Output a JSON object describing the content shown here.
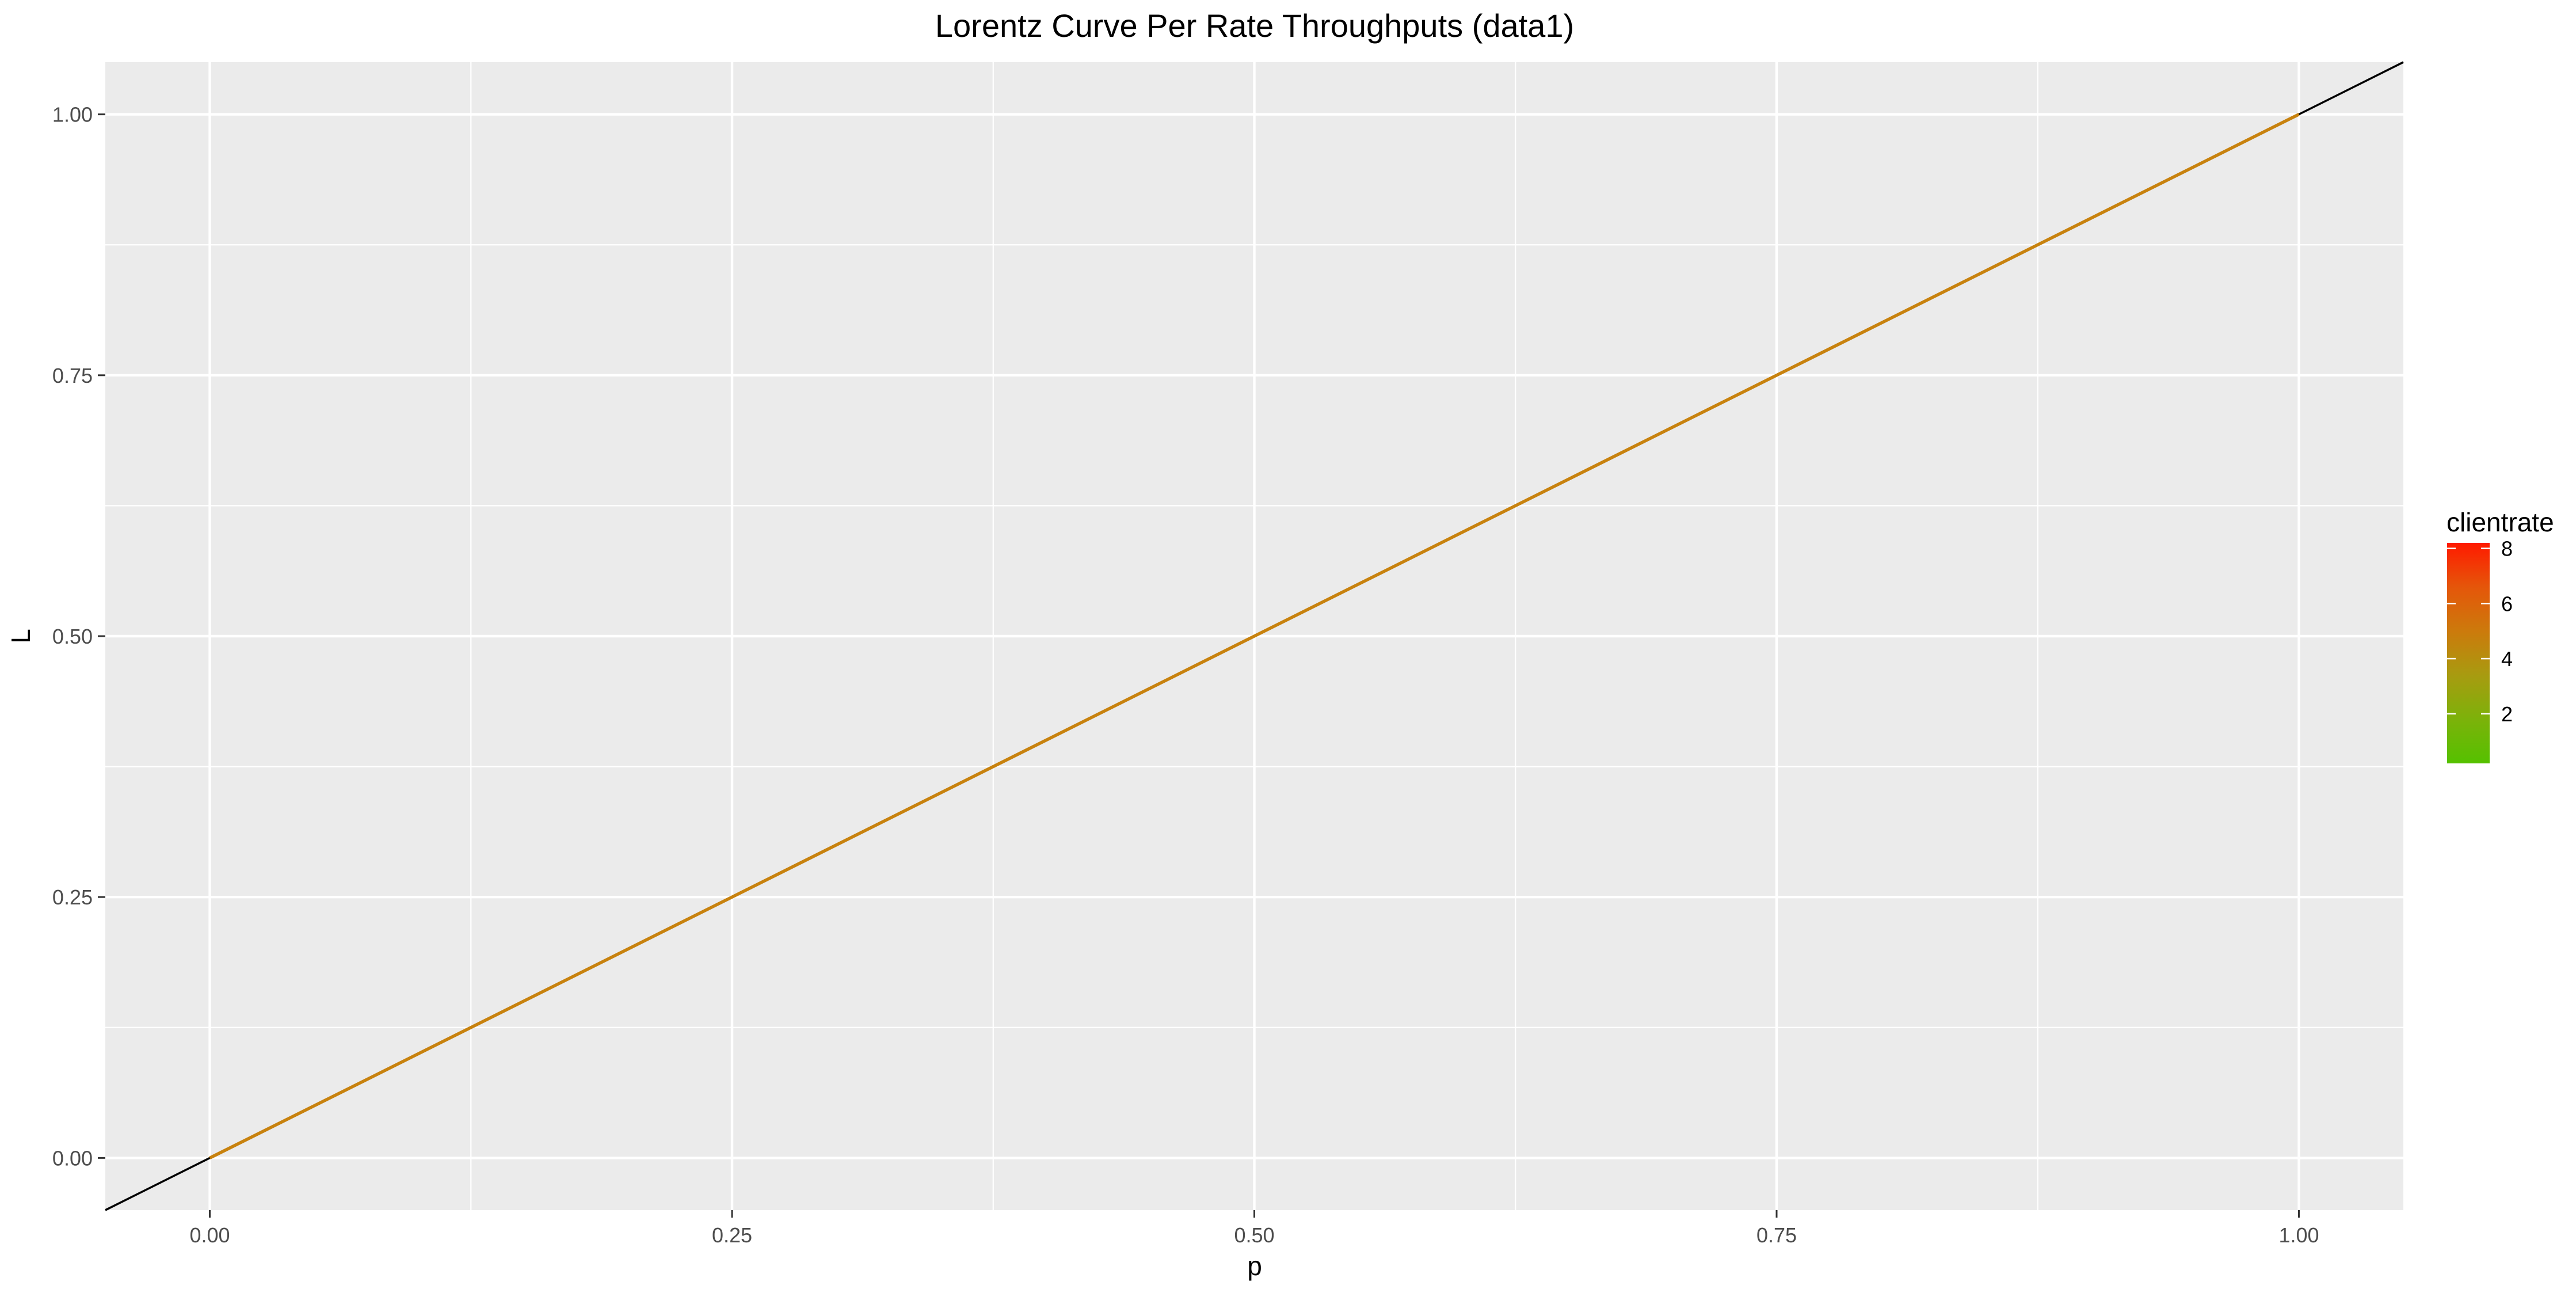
{
  "chart_data": {
    "type": "line",
    "title": "Lorentz Curve Per Rate Throughputs (data1)",
    "xlabel": "p",
    "ylabel": "L",
    "xlim": [
      -0.05,
      1.05
    ],
    "ylim": [
      -0.05,
      1.05
    ],
    "x_ticks": [
      "0.00",
      "0.25",
      "0.50",
      "0.75",
      "1.00"
    ],
    "y_ticks": [
      "0.00",
      "0.25",
      "0.50",
      "0.75",
      "1.00"
    ],
    "grid": true,
    "panel_background": "#ebebeb",
    "reference_line": {
      "x": [
        -0.05,
        1.05
      ],
      "y": [
        -0.05,
        1.05
      ],
      "color": "#000000"
    },
    "series": [
      {
        "clientrate": 4.5,
        "color": "#c8820e",
        "x": [
          0.0,
          1.0
        ],
        "y": [
          0.0,
          1.0
        ]
      }
    ],
    "legend": {
      "title": "clientrate",
      "position": "right",
      "type": "colorbar",
      "range": [
        0.2,
        8.2
      ],
      "ticks": [
        "2",
        "4",
        "6",
        "8"
      ],
      "colors": [
        "#ff1a00",
        "#e5560a",
        "#cc7a0c",
        "#a89b10",
        "#7cb20a",
        "#55c100"
      ]
    }
  }
}
